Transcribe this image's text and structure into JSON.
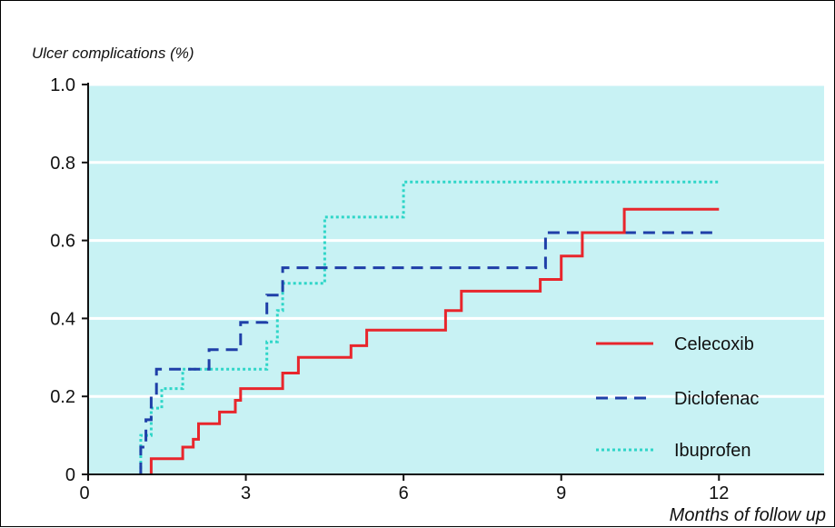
{
  "chart_data": {
    "type": "line",
    "step": true,
    "title": "",
    "ylabel": "Ulcer complications (%)",
    "xlabel": "Months of follow up",
    "xlim": [
      0,
      14
    ],
    "ylim": [
      0,
      1.0
    ],
    "xticks": [
      0,
      3,
      6,
      9,
      12
    ],
    "xtick_labels": [
      "0",
      "3",
      "6",
      "9",
      "12"
    ],
    "yticks": [
      0,
      0.2,
      0.4,
      0.6,
      0.8,
      1.0
    ],
    "ytick_labels": [
      "0",
      "0.2",
      "0.4",
      "0.6",
      "0.8",
      "1.0"
    ],
    "grid": "horizontal",
    "legend_position": "right",
    "colors": {
      "background": "#c8f2f4",
      "grid": "#ffffff",
      "axis": "#111111"
    },
    "series": [
      {
        "name": "Celecoxib",
        "color": "#e8262c",
        "style": "solid",
        "points": [
          [
            1.2,
            0
          ],
          [
            1.2,
            0.04
          ],
          [
            1.8,
            0.04
          ],
          [
            1.8,
            0.07
          ],
          [
            2.0,
            0.07
          ],
          [
            2.0,
            0.09
          ],
          [
            2.1,
            0.09
          ],
          [
            2.1,
            0.13
          ],
          [
            2.5,
            0.13
          ],
          [
            2.5,
            0.16
          ],
          [
            2.8,
            0.16
          ],
          [
            2.8,
            0.19
          ],
          [
            2.9,
            0.19
          ],
          [
            2.9,
            0.22
          ],
          [
            3.7,
            0.22
          ],
          [
            3.7,
            0.26
          ],
          [
            4.0,
            0.26
          ],
          [
            4.0,
            0.3
          ],
          [
            5.0,
            0.3
          ],
          [
            5.0,
            0.33
          ],
          [
            5.3,
            0.33
          ],
          [
            5.3,
            0.37
          ],
          [
            6.8,
            0.37
          ],
          [
            6.8,
            0.42
          ],
          [
            7.1,
            0.42
          ],
          [
            7.1,
            0.47
          ],
          [
            8.6,
            0.47
          ],
          [
            8.6,
            0.5
          ],
          [
            9.0,
            0.5
          ],
          [
            9.0,
            0.56
          ],
          [
            9.4,
            0.56
          ],
          [
            9.4,
            0.62
          ],
          [
            10.2,
            0.62
          ],
          [
            10.2,
            0.68
          ],
          [
            12.0,
            0.68
          ]
        ]
      },
      {
        "name": "Diclofenac",
        "color": "#1f3fa8",
        "style": "dashed",
        "points": [
          [
            1.0,
            0
          ],
          [
            1.0,
            0.07
          ],
          [
            1.1,
            0.07
          ],
          [
            1.1,
            0.14
          ],
          [
            1.2,
            0.14
          ],
          [
            1.2,
            0.2
          ],
          [
            1.3,
            0.2
          ],
          [
            1.3,
            0.27
          ],
          [
            2.3,
            0.27
          ],
          [
            2.3,
            0.32
          ],
          [
            2.9,
            0.32
          ],
          [
            2.9,
            0.39
          ],
          [
            3.4,
            0.39
          ],
          [
            3.4,
            0.46
          ],
          [
            3.7,
            0.46
          ],
          [
            3.7,
            0.53
          ],
          [
            8.7,
            0.53
          ],
          [
            8.7,
            0.62
          ],
          [
            12.0,
            0.62
          ]
        ]
      },
      {
        "name": "Ibuprofen",
        "color": "#2fd6c8",
        "style": "dotted",
        "points": [
          [
            1.0,
            0
          ],
          [
            1.0,
            0.1
          ],
          [
            1.2,
            0.1
          ],
          [
            1.2,
            0.17
          ],
          [
            1.4,
            0.17
          ],
          [
            1.4,
            0.22
          ],
          [
            1.8,
            0.22
          ],
          [
            1.8,
            0.27
          ],
          [
            3.4,
            0.27
          ],
          [
            3.4,
            0.34
          ],
          [
            3.6,
            0.34
          ],
          [
            3.6,
            0.42
          ],
          [
            3.7,
            0.42
          ],
          [
            3.7,
            0.49
          ],
          [
            4.5,
            0.49
          ],
          [
            4.5,
            0.66
          ],
          [
            6.0,
            0.66
          ],
          [
            6.0,
            0.75
          ],
          [
            12.0,
            0.75
          ]
        ]
      }
    ]
  }
}
